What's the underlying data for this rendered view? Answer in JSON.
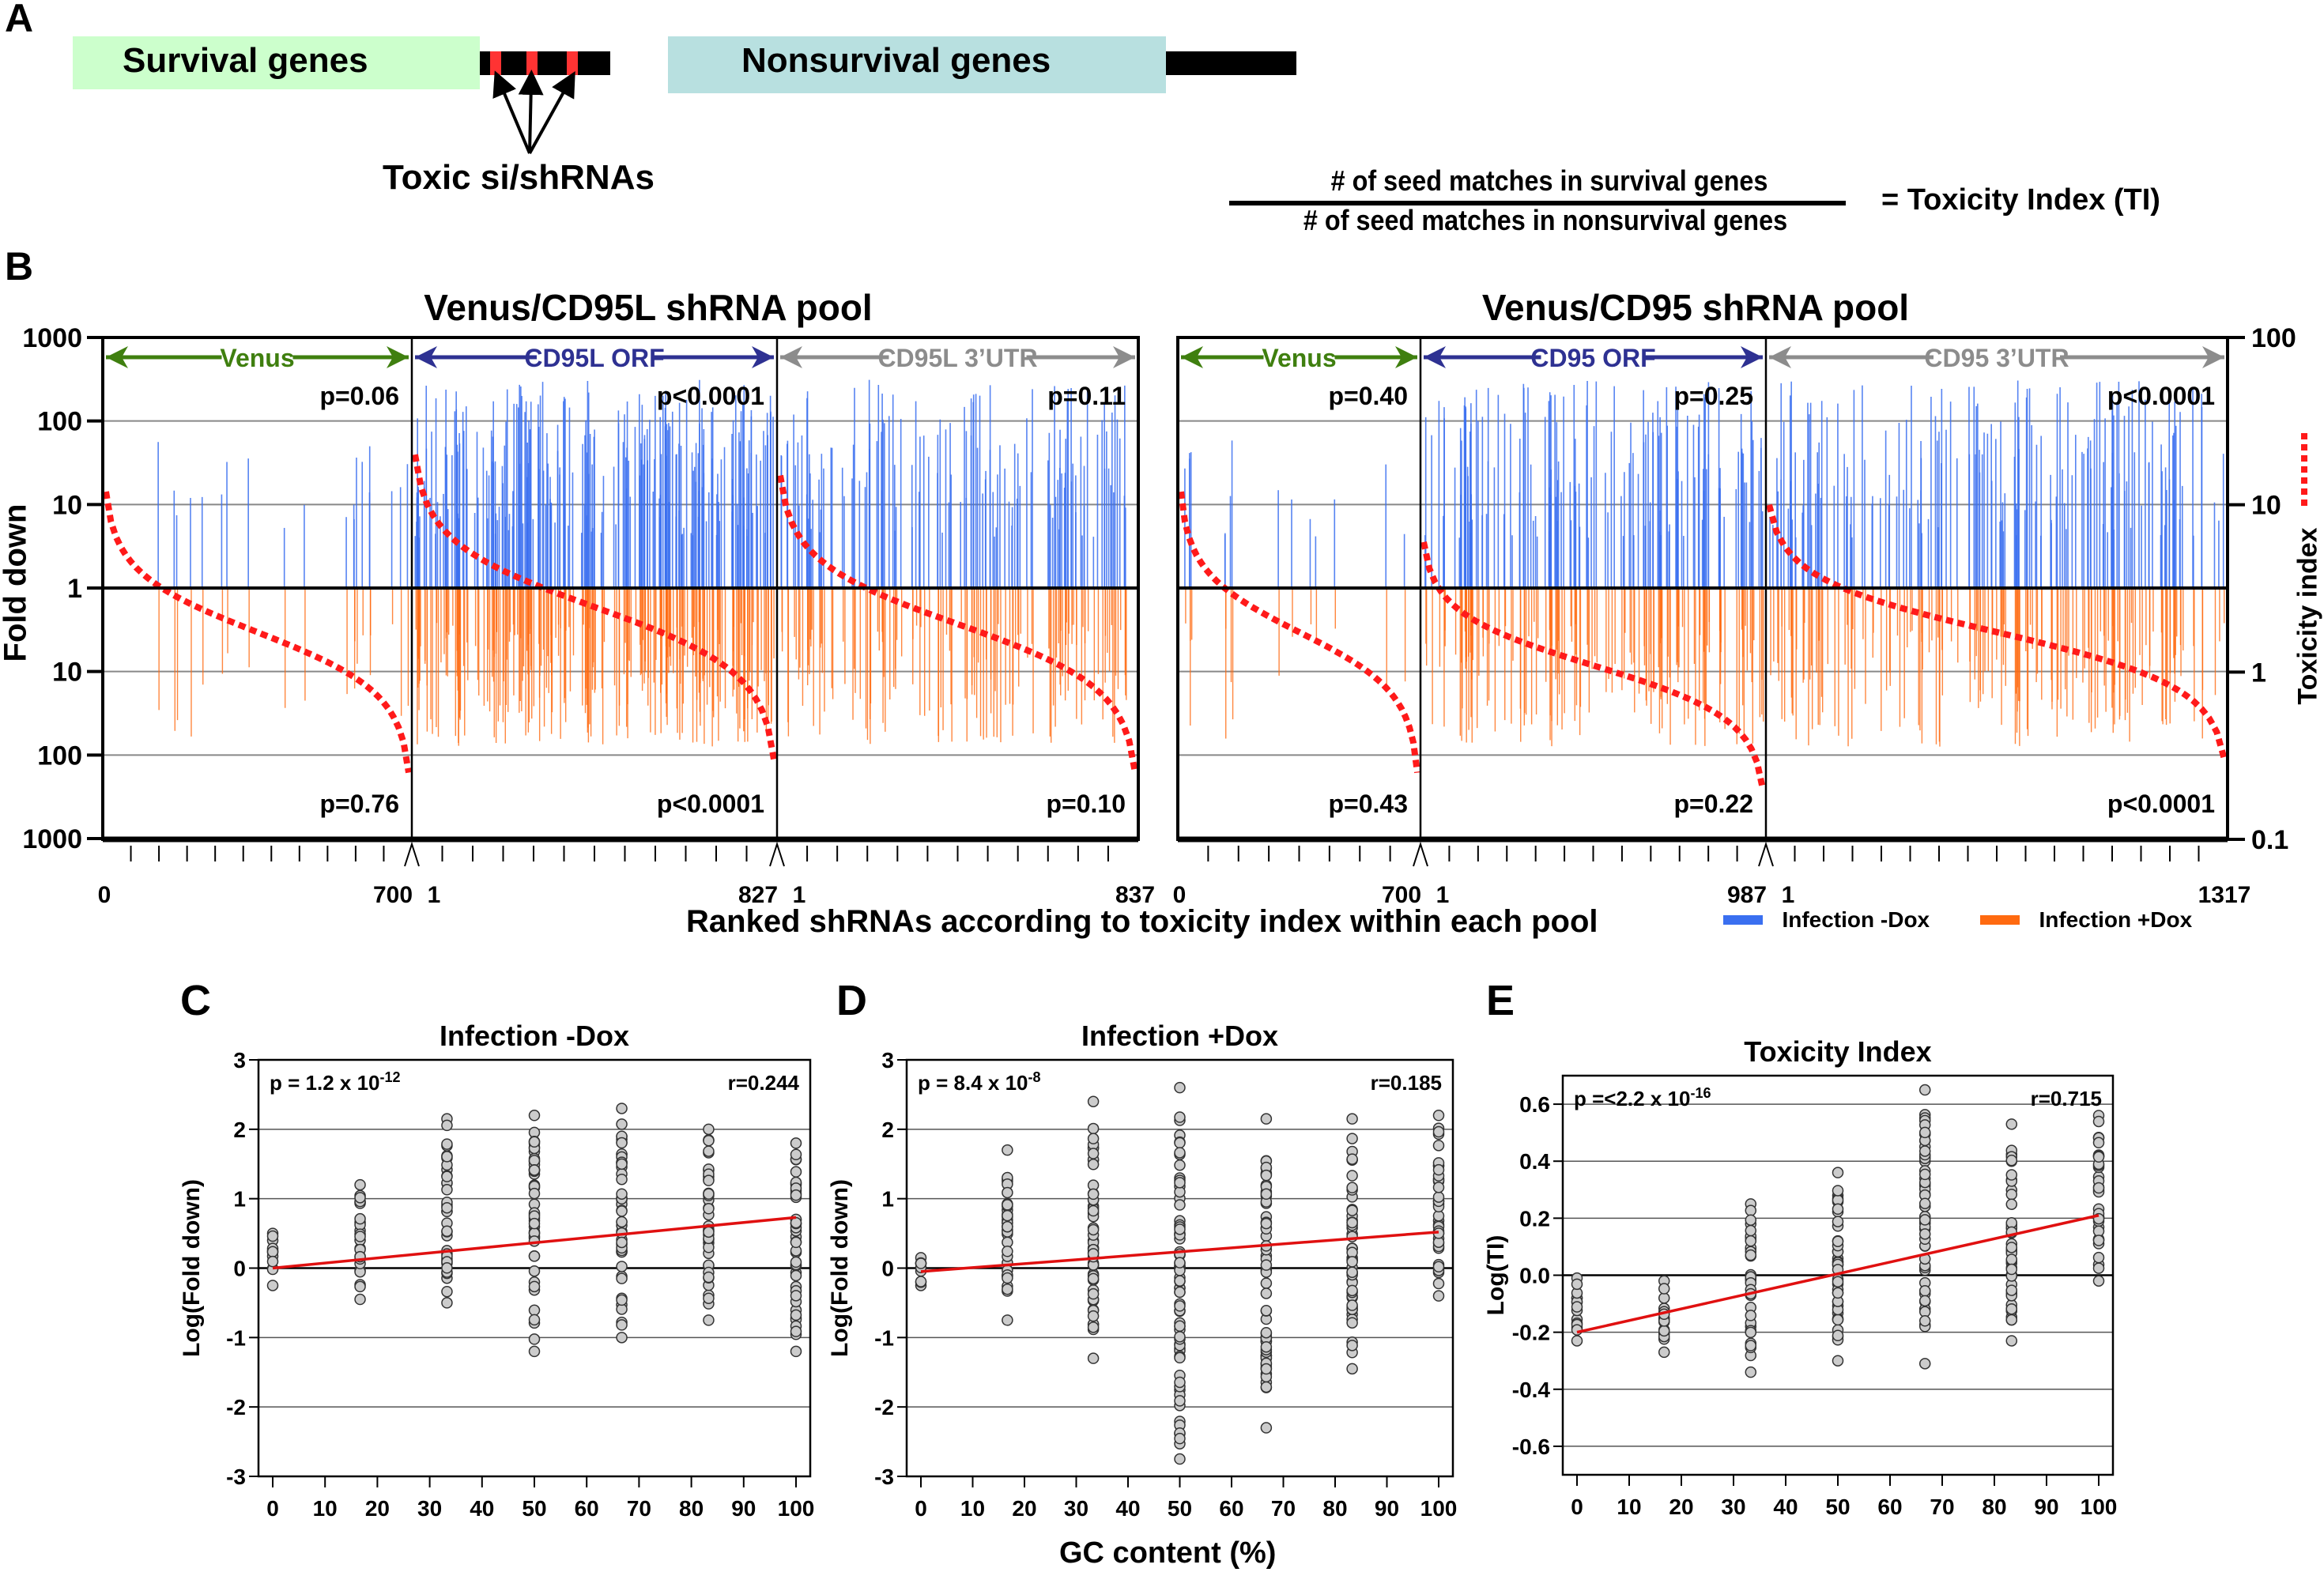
{
  "panel_a": {
    "label": "A",
    "survival_box": "Survival genes",
    "nonsurvival_box": "Nonsurvival genes",
    "toxic_label": "Toxic si/shRNAs",
    "formula_numerator": "# of seed matches in survival genes",
    "formula_denominator": "# of seed matches in nonsurvival genes",
    "formula_result": "= Toxicity Index (TI)",
    "colors": {
      "survival": "#ccffcc",
      "nonsurvival": "#b8e0e0",
      "seed_match": "#ff3333",
      "utr": "#000000"
    }
  },
  "panel_b": {
    "label": "B",
    "ylabel_left": "Fold down",
    "ylabel_right": "Toxicity index",
    "xlabel": "Ranked shRNAs according to toxicity index within each pool",
    "left_ticks": [
      "1000",
      "100",
      "10",
      "1",
      "10",
      "100",
      "1000"
    ],
    "right_ticks": [
      "100",
      "10",
      "1",
      "0.1"
    ],
    "legend": [
      {
        "label": "Infection -Dox",
        "color": "#3a6ff0"
      },
      {
        "label": "Infection +Dox",
        "color": "#ff6a10"
      }
    ],
    "pools": [
      {
        "title": "Venus/CD95L shRNA pool",
        "segments": [
          {
            "name": "Venus",
            "color": "#3f7f0f",
            "p_top": "p=0.06",
            "p_bottom": "p=0.76",
            "start_label": "0",
            "end_label": "700",
            "n": 700
          },
          {
            "name": "CD95L ORF",
            "color": "#2e3192",
            "p_top": "p<0.0001",
            "p_bottom": "p<0.0001",
            "start_label": "1",
            "end_label": "827",
            "n": 827
          },
          {
            "name": "CD95L 3’UTR",
            "color": "#8c8c8c",
            "p_top": "p=0.11",
            "p_bottom": "p=0.10",
            "start_label": "1",
            "end_label": "837",
            "n": 837
          }
        ]
      },
      {
        "title": "Venus/CD95 shRNA pool",
        "segments": [
          {
            "name": "Venus",
            "color": "#3f7f0f",
            "p_top": "p=0.40",
            "p_bottom": "p=0.43",
            "start_label": "0",
            "end_label": "700",
            "n": 700
          },
          {
            "name": "CD95 ORF",
            "color": "#2e3192",
            "p_top": "p=0.25",
            "p_bottom": "p=0.22",
            "start_label": "1",
            "end_label": "987",
            "n": 987
          },
          {
            "name": "CD95 3’UTR",
            "color": "#8c8c8c",
            "p_top": "p<0.0001",
            "p_bottom": "p<0.0001",
            "start_label": "1",
            "end_label": "1317",
            "n": 1317
          }
        ]
      }
    ]
  },
  "chart_data": [
    {
      "type": "bar",
      "title": "Venus/CD95L shRNA pool",
      "xlabel": "Ranked shRNAs according to toxicity index within each pool",
      "ylabel": "Fold down",
      "y2label": "Toxicity index",
      "yscale": "log, mirrored about 1 (up = Infection -Dox, down = Infection +Dox)",
      "ylim": [
        1,
        1000
      ],
      "y2lim": [
        0.1,
        100
      ],
      "series": [
        {
          "name": "Infection -Dox",
          "direction": "up",
          "summary": "sparse spikes in Venus (mostly <100), dense spikes in CD95L ORF up to ~300-400, spikes in 3'UTR up to ~400"
        },
        {
          "name": "Infection +Dox",
          "direction": "down",
          "summary": "spikes mostly 5-100 fold, occasional up to ~500"
        },
        {
          "name": "Toxicity index",
          "style": "red dotted",
          "segments": [
            {
              "segment": "Venus",
              "start": 12,
              "end": 0.25
            },
            {
              "segment": "CD95L ORF",
              "start": 20,
              "end": 0.3
            },
            {
              "segment": "CD95L 3’UTR",
              "start": 15,
              "end": 0.25
            }
          ]
        }
      ],
      "annotations": [
        "p=0.06",
        "p=0.76",
        "p<0.0001",
        "p<0.0001",
        "p=0.11",
        "p=0.10"
      ]
    },
    {
      "type": "bar",
      "title": "Venus/CD95 shRNA pool",
      "xlabel": "Ranked shRNAs according to toxicity index within each pool",
      "ylabel": "Fold down",
      "y2label": "Toxicity index",
      "ylim": [
        1,
        1000
      ],
      "y2lim": [
        0.1,
        100
      ],
      "series": [
        {
          "name": "Infection -Dox",
          "direction": "up"
        },
        {
          "name": "Infection +Dox",
          "direction": "down"
        },
        {
          "name": "Toxicity index",
          "style": "red dotted",
          "segments": [
            {
              "segment": "Venus",
              "start": 12,
              "end": 0.25
            },
            {
              "segment": "CD95 ORF",
              "start": 6,
              "end": 0.2
            },
            {
              "segment": "CD95 3’UTR",
              "start": 10,
              "end": 0.3
            }
          ]
        }
      ],
      "annotations": [
        "p=0.40",
        "p=0.43",
        "p=0.25",
        "p=0.22",
        "p<0.0001",
        "p<0.0001"
      ]
    },
    {
      "type": "scatter",
      "label": "C",
      "title": "Infection -Dox",
      "xlabel": "GC content (%)",
      "ylabel": "Log(Fold down)",
      "xlim": [
        0,
        100
      ],
      "ylim": [
        -3,
        3
      ],
      "xticks": [
        "0",
        "10",
        "20",
        "30",
        "40",
        "50",
        "60",
        "70",
        "80",
        "90",
        "100"
      ],
      "yticks": [
        "3",
        "2",
        "1",
        "0",
        "-1",
        "-2",
        "-3"
      ],
      "stat_p": "p = 1.2 x 10",
      "stat_p_exp": "-12",
      "stat_r": "r=0.244",
      "columns": [
        {
          "x": 0,
          "min": -0.25,
          "max": 0.5
        },
        {
          "x": 16.7,
          "min": -0.45,
          "max": 1.2
        },
        {
          "x": 33.3,
          "min": -0.5,
          "max": 2.15
        },
        {
          "x": 50,
          "min": -1.2,
          "max": 2.2
        },
        {
          "x": 66.7,
          "min": -1.0,
          "max": 2.3
        },
        {
          "x": 83.3,
          "min": -0.75,
          "max": 2.0
        },
        {
          "x": 100,
          "min": -1.2,
          "max": 1.8
        }
      ],
      "regression": {
        "x0": 0,
        "y0": 0.0,
        "x1": 100,
        "y1": 0.73
      }
    },
    {
      "type": "scatter",
      "label": "D",
      "title": "Infection +Dox",
      "xlabel": "GC content (%)",
      "ylabel": "Log(Fold down)",
      "xlim": [
        0,
        100
      ],
      "ylim": [
        -3,
        3
      ],
      "xticks": [
        "0",
        "10",
        "20",
        "30",
        "40",
        "50",
        "60",
        "70",
        "80",
        "90",
        "100"
      ],
      "yticks": [
        "3",
        "2",
        "1",
        "0",
        "-1",
        "-2",
        "-3"
      ],
      "stat_p": "p = 8.4 x 10",
      "stat_p_exp": "-8",
      "stat_r": "r=0.185",
      "columns": [
        {
          "x": 0,
          "min": -0.25,
          "max": 0.15
        },
        {
          "x": 16.7,
          "min": -0.75,
          "max": 1.7
        },
        {
          "x": 33.3,
          "min": -1.3,
          "max": 2.4
        },
        {
          "x": 50,
          "min": -2.75,
          "max": 2.6
        },
        {
          "x": 66.7,
          "min": -2.3,
          "max": 2.15
        },
        {
          "x": 83.3,
          "min": -1.45,
          "max": 2.15
        },
        {
          "x": 100,
          "min": -0.4,
          "max": 2.2
        }
      ],
      "regression": {
        "x0": 0,
        "y0": -0.05,
        "x1": 100,
        "y1": 0.52
      }
    },
    {
      "type": "scatter",
      "label": "E",
      "title": "Toxicity Index",
      "xlabel": "GC content (%)",
      "ylabel": "Log(TI)",
      "xlim": [
        0,
        100
      ],
      "ylim": [
        -0.7,
        0.7
      ],
      "xticks": [
        "0",
        "10",
        "20",
        "30",
        "40",
        "50",
        "60",
        "70",
        "80",
        "90",
        "100"
      ],
      "yticks": [
        "0.6",
        "0.4",
        "0.2",
        "0.0",
        "-0.2",
        "-0.4",
        "-0.6"
      ],
      "stat_p": "p =<2.2 x 10",
      "stat_p_exp": "-16",
      "stat_r": "r=0.715",
      "columns": [
        {
          "x": 0,
          "min": -0.23,
          "max": -0.01
        },
        {
          "x": 16.7,
          "min": -0.27,
          "max": -0.02
        },
        {
          "x": 33.3,
          "min": -0.34,
          "max": 0.25
        },
        {
          "x": 50,
          "min": -0.3,
          "max": 0.36
        },
        {
          "x": 66.7,
          "min": -0.31,
          "max": 0.65
        },
        {
          "x": 83.3,
          "min": -0.23,
          "max": 0.53
        },
        {
          "x": 100,
          "min": -0.02,
          "max": 0.56
        }
      ],
      "regression": {
        "x0": 0,
        "y0": -0.2,
        "x1": 100,
        "y1": 0.21
      }
    }
  ],
  "panel_labels": {
    "c": "C",
    "d": "D",
    "e": "E"
  },
  "shared_xlabel": "GC content (%)"
}
